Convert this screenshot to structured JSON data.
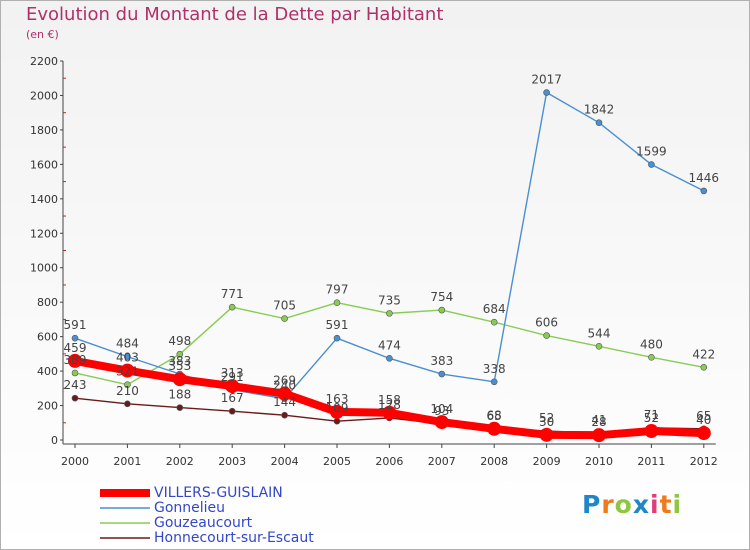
{
  "chart_data": {
    "type": "line",
    "title": "Evolution du Montant de la Dette par Habitant",
    "subtitle": "(en €)",
    "x": [
      "2000",
      "2001",
      "2002",
      "2003",
      "2004",
      "2005",
      "2006",
      "2007",
      "2008",
      "2009",
      "2010",
      "2011",
      "2012"
    ],
    "ylim": [
      0,
      2200
    ],
    "yticks": [
      0,
      200,
      400,
      600,
      800,
      1000,
      1200,
      1400,
      1600,
      1800,
      2000,
      2200
    ],
    "grid": false,
    "legend_position": "bottom-left",
    "series": [
      {
        "name": "VILLERS-GUISLAIN",
        "color": "#ff0000",
        "values": [
          459,
          403,
          353,
          313,
          269,
          163,
          158,
          104,
          65,
          30,
          28,
          52,
          40
        ],
        "labels": [
          "459",
          "403",
          "353",
          "313",
          "269",
          "163",
          "158",
          "104",
          "65",
          "30",
          "28",
          "52",
          "40"
        ]
      },
      {
        "name": "Gonnelieu",
        "color": "#4a8fd0",
        "values": [
          591,
          484,
          383,
          291,
          240,
          591,
          474,
          383,
          338,
          2017,
          1842,
          1599,
          1446
        ],
        "labels": [
          "591",
          "484",
          "383",
          "291",
          "240",
          "591",
          "474",
          "383",
          "338",
          "2017",
          "1842",
          "1599",
          "1446"
        ]
      },
      {
        "name": "Gouzeaucourt",
        "color": "#88cc55",
        "values": [
          389,
          321,
          498,
          771,
          705,
          797,
          735,
          754,
          684,
          606,
          544,
          480,
          422
        ],
        "labels": [
          "389",
          "321",
          "498",
          "771",
          "705",
          "797",
          "735",
          "754",
          "684",
          "606",
          "544",
          "480",
          "422"
        ]
      },
      {
        "name": "Honnecourt-sur-Escaut",
        "color": "#6b1a1a",
        "values": [
          243,
          210,
          188,
          167,
          144,
          109,
          128,
          93,
          68,
          52,
          41,
          71,
          65
        ],
        "labels": [
          "243",
          "210",
          "188",
          "167",
          "144",
          "109",
          "128",
          "93",
          "68",
          "52",
          "41",
          "71",
          "65"
        ]
      }
    ]
  },
  "logo": {
    "letters": [
      {
        "ch": "P",
        "color": "#1f87c8"
      },
      {
        "ch": "r",
        "color": "#f07a19"
      },
      {
        "ch": "o",
        "color": "#8dc63f"
      },
      {
        "ch": "x",
        "color": "#1f87c8"
      },
      {
        "ch": "i",
        "color": "#e23a7a"
      },
      {
        "ch": "t",
        "color": "#f07a19"
      },
      {
        "ch": "i",
        "color": "#8dc63f"
      }
    ]
  }
}
